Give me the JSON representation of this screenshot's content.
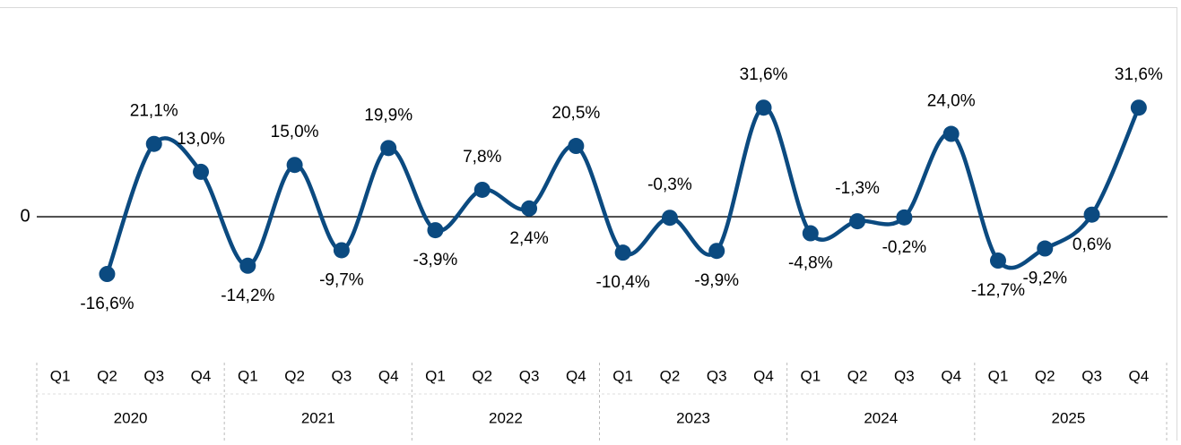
{
  "chart_data": {
    "type": "line",
    "categories": [
      "Q1",
      "Q2",
      "Q3",
      "Q4",
      "Q1",
      "Q2",
      "Q3",
      "Q4",
      "Q1",
      "Q2",
      "Q3",
      "Q4",
      "Q1",
      "Q2",
      "Q3",
      "Q4",
      "Q1",
      "Q2",
      "Q3",
      "Q4",
      "Q1",
      "Q2",
      "Q3",
      "Q4"
    ],
    "years": [
      "2020",
      "2021",
      "2022",
      "2023",
      "2024",
      "2025"
    ],
    "series": [
      {
        "color": "#0b4a80",
        "values": [
          null,
          -16.6,
          21.1,
          13.0,
          -14.2,
          15.0,
          -9.7,
          19.9,
          -3.9,
          7.8,
          2.4,
          20.5,
          -10.4,
          -0.3,
          -9.9,
          31.6,
          -4.8,
          -1.3,
          -0.2,
          24.0,
          -12.7,
          -9.2,
          0.6,
          31.6
        ],
        "value_labels": [
          null,
          "-16,6%",
          "21,1%",
          "13,0%",
          "-14,2%",
          "15,0%",
          "-9,7%",
          "19,9%",
          "-3,9%",
          "7,8%",
          "2,4%",
          "20,5%",
          "-10,4%",
          "-0,3%",
          "-9,9%",
          "31,6%",
          "-4,8%",
          "-1,3%",
          "-0,2%",
          "24,0%",
          "-12,7%",
          "-9,2%",
          "0,6%",
          "31,6%"
        ]
      }
    ],
    "ylim": [
      -35,
      55
    ],
    "yticks": [
      0
    ]
  }
}
